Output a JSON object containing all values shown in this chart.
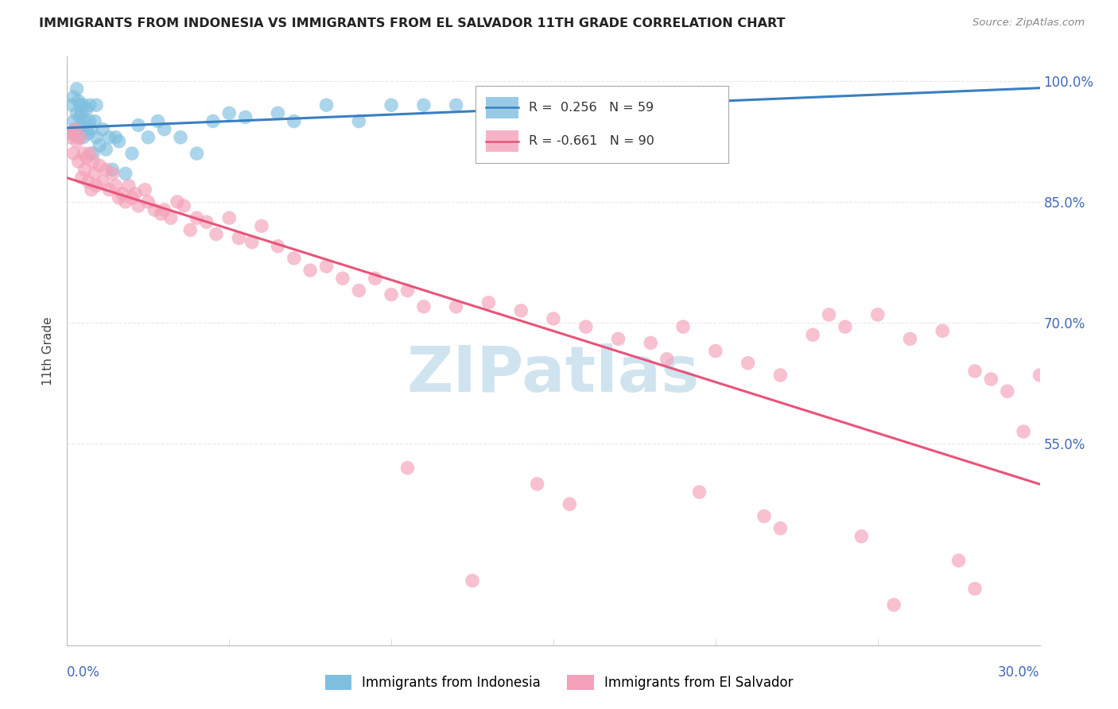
{
  "title": "IMMIGRANTS FROM INDONESIA VS IMMIGRANTS FROM EL SALVADOR 11TH GRADE CORRELATION CHART",
  "source": "Source: ZipAtlas.com",
  "ylabel": "11th Grade",
  "xmin": 0.0,
  "xmax": 30.0,
  "ymin": 30.0,
  "ymax": 103.0,
  "yticks": [
    55.0,
    70.0,
    85.0,
    100.0
  ],
  "ytick_labels": [
    "55.0%",
    "70.0%",
    "85.0%",
    "100.0%"
  ],
  "R_indonesia": 0.256,
  "N_indonesia": 59,
  "R_elsalvador": -0.661,
  "N_elsalvador": 90,
  "color_indonesia": "#7fbfdf",
  "color_elsalvador": "#f4a0b8",
  "trendline_indonesia": "#3a7fc1",
  "trendline_elsalvador": "#e8547a",
  "watermark": "ZIPatlas",
  "watermark_color": "#d0e4f0",
  "background_color": "#ffffff",
  "grid_color": "#e8e8e8",
  "grid_style": "--",
  "indonesia_x": [
    0.1,
    0.15,
    0.2,
    0.2,
    0.25,
    0.3,
    0.3,
    0.35,
    0.35,
    0.4,
    0.4,
    0.45,
    0.45,
    0.5,
    0.5,
    0.55,
    0.6,
    0.6,
    0.65,
    0.7,
    0.7,
    0.75,
    0.8,
    0.85,
    0.9,
    0.9,
    1.0,
    1.1,
    1.2,
    1.3,
    1.4,
    1.5,
    1.6,
    1.8,
    2.0,
    2.2,
    2.5,
    2.8,
    3.0,
    3.5,
    4.0,
    4.5,
    5.0,
    5.5,
    6.5,
    7.0,
    8.0,
    9.0,
    10.0,
    11.0,
    12.0,
    13.0,
    14.0,
    15.0,
    16.0,
    17.0,
    18.0,
    19.0,
    20.0
  ],
  "indonesia_y": [
    93.5,
    97.0,
    95.0,
    98.0,
    94.0,
    96.0,
    99.0,
    97.5,
    93.0,
    95.5,
    97.0,
    94.5,
    96.0,
    93.0,
    97.0,
    95.0,
    94.0,
    96.5,
    93.5,
    97.0,
    95.0,
    94.0,
    91.0,
    95.0,
    93.0,
    97.0,
    92.0,
    94.0,
    91.5,
    93.0,
    89.0,
    93.0,
    92.5,
    88.5,
    91.0,
    94.5,
    93.0,
    95.0,
    94.0,
    93.0,
    91.0,
    95.0,
    96.0,
    95.5,
    96.0,
    95.0,
    97.0,
    95.0,
    97.0,
    97.0,
    97.0,
    97.0,
    97.0,
    97.0,
    97.0,
    97.0,
    97.0,
    97.0,
    97.0
  ],
  "elsalvador_x": [
    0.1,
    0.15,
    0.2,
    0.25,
    0.3,
    0.35,
    0.4,
    0.45,
    0.5,
    0.55,
    0.6,
    0.65,
    0.7,
    0.75,
    0.8,
    0.85,
    0.9,
    1.0,
    1.1,
    1.2,
    1.3,
    1.4,
    1.5,
    1.6,
    1.7,
    1.8,
    1.9,
    2.0,
    2.1,
    2.2,
    2.4,
    2.5,
    2.7,
    2.9,
    3.0,
    3.2,
    3.4,
    3.6,
    3.8,
    4.0,
    4.3,
    4.6,
    5.0,
    5.3,
    5.7,
    6.0,
    6.5,
    7.0,
    7.5,
    8.0,
    8.5,
    9.0,
    9.5,
    10.0,
    10.5,
    11.0,
    12.0,
    13.0,
    14.0,
    15.0,
    16.0,
    17.0,
    18.0,
    18.5,
    19.0,
    20.0,
    21.0,
    22.0,
    23.0,
    23.5,
    24.0,
    25.0,
    26.0,
    27.0,
    28.0,
    28.5,
    29.0,
    29.5,
    30.0,
    14.5,
    15.5,
    19.5,
    21.5,
    24.5,
    27.5,
    28.0,
    10.5,
    12.5,
    22.0,
    25.5
  ],
  "elsalvador_y": [
    93.0,
    93.5,
    91.0,
    94.0,
    92.5,
    90.0,
    93.0,
    88.0,
    91.0,
    89.0,
    90.5,
    87.5,
    91.0,
    86.5,
    90.0,
    88.5,
    87.0,
    89.5,
    87.5,
    89.0,
    86.5,
    88.5,
    87.0,
    85.5,
    86.0,
    85.0,
    87.0,
    85.5,
    86.0,
    84.5,
    86.5,
    85.0,
    84.0,
    83.5,
    84.0,
    83.0,
    85.0,
    84.5,
    81.5,
    83.0,
    82.5,
    81.0,
    83.0,
    80.5,
    80.0,
    82.0,
    79.5,
    78.0,
    76.5,
    77.0,
    75.5,
    74.0,
    75.5,
    73.5,
    74.0,
    72.0,
    72.0,
    72.5,
    71.5,
    70.5,
    69.5,
    68.0,
    67.5,
    65.5,
    69.5,
    66.5,
    65.0,
    63.5,
    68.5,
    71.0,
    69.5,
    71.0,
    68.0,
    69.0,
    64.0,
    63.0,
    61.5,
    56.5,
    63.5,
    50.0,
    47.5,
    49.0,
    46.0,
    43.5,
    40.5,
    37.0,
    52.0,
    38.0,
    44.5,
    35.0
  ]
}
